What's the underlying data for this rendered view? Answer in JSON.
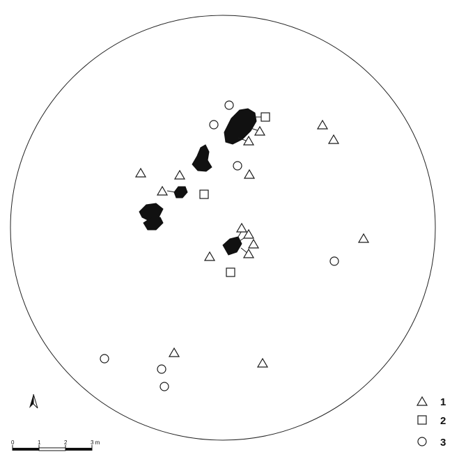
{
  "map": {
    "legend": [
      {
        "symbol": "triangle",
        "label": "1"
      },
      {
        "symbol": "square",
        "label": "2"
      },
      {
        "symbol": "circle",
        "label": "3"
      }
    ],
    "scale_bar": {
      "labels": [
        "0",
        "1",
        "2",
        "3 m"
      ]
    },
    "north_arrow": "north-arrow-icon",
    "colors": {
      "ink": "#111111",
      "outline": "#1a1a1a",
      "paper": "#ffffff"
    }
  }
}
